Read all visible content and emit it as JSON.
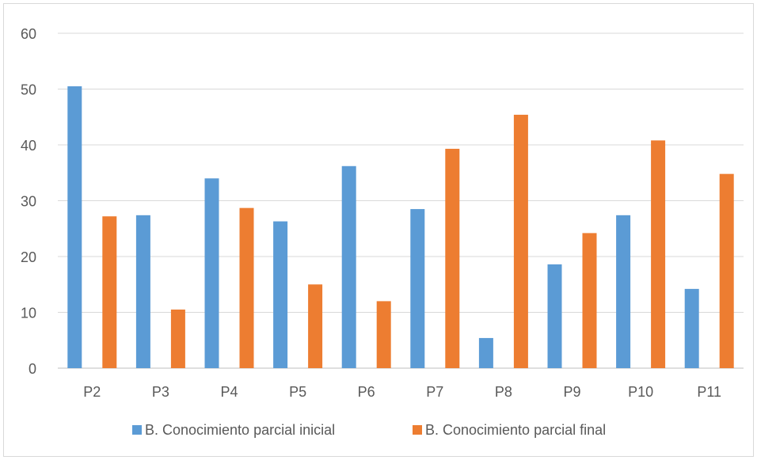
{
  "chart_data": {
    "type": "bar",
    "title": "",
    "xlabel": "",
    "ylabel": "",
    "categories": [
      "P2",
      "P3",
      "P4",
      "P5",
      "P6",
      "P7",
      "P8",
      "P9",
      "P10",
      "P11"
    ],
    "ylim": [
      0,
      60
    ],
    "yticks": [
      "0",
      "10",
      "20",
      "30",
      "40",
      "50",
      "60"
    ],
    "grid": true,
    "legend_position": "bottom",
    "series": [
      {
        "name": "B. Conocimiento parcial inicial",
        "color": "#5b9bd5",
        "values": [
          50.5,
          27.4,
          34.0,
          26.3,
          36.2,
          28.5,
          5.4,
          18.6,
          27.4,
          14.2
        ]
      },
      {
        "name": "B. Conocimiento parcial final",
        "color": "#ed7d31",
        "values": [
          27.2,
          10.5,
          28.7,
          15.0,
          12.0,
          39.3,
          45.4,
          24.2,
          40.8,
          34.8
        ]
      }
    ]
  }
}
